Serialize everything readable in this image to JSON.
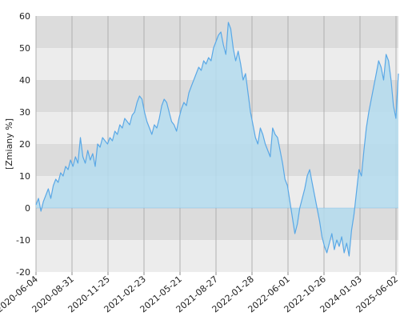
{
  "chart_data": {
    "type": "area",
    "title": "",
    "xlabel": "",
    "ylabel": "[Zmiany %]",
    "ylim": [
      -20,
      60
    ],
    "y_ticks": [
      -20,
      -10,
      0,
      10,
      20,
      30,
      40,
      50,
      60
    ],
    "grid": true,
    "x_tick_labels": [
      "2020-06-04",
      "2020-08-31",
      "2020-11-25",
      "2021-02-23",
      "2021-05-21",
      "2021-08-27",
      "2022-01-28",
      "2022-06-01",
      "2022-10-26",
      "2024-01-03",
      "2025-06-02"
    ],
    "colors": {
      "line": "#5aa8e6",
      "fill": "#b4dcee",
      "band_dark": "#dcdcdc",
      "band_light": "#ececec",
      "vgrid": "#b0b0b0"
    },
    "series": [
      {
        "values": [
          1,
          3,
          -1,
          2,
          4,
          6,
          3,
          7,
          9,
          8,
          11,
          10,
          13,
          12,
          15,
          13,
          16,
          14,
          22,
          16,
          14,
          18,
          15,
          17,
          13,
          20,
          19,
          22,
          21,
          20,
          22,
          21,
          24,
          23,
          26,
          25,
          28,
          27,
          26,
          29,
          30,
          33,
          35,
          34,
          30,
          27,
          25,
          23,
          26,
          25,
          28,
          32,
          34,
          33,
          30,
          27,
          26,
          24,
          28,
          31,
          33,
          32,
          36,
          38,
          40,
          42,
          44,
          43,
          46,
          45,
          47,
          46,
          50,
          52,
          54,
          55,
          51,
          48,
          58,
          56,
          50,
          46,
          49,
          45,
          40,
          42,
          36,
          30,
          26,
          22,
          20,
          25,
          23,
          20,
          18,
          16,
          25,
          23,
          22,
          18,
          14,
          9,
          7,
          2,
          -3,
          -8,
          -5,
          0,
          3,
          6,
          10,
          12,
          8,
          4,
          0,
          -4,
          -9,
          -12,
          -14,
          -11,
          -8,
          -13,
          -10,
          -12,
          -9,
          -14,
          -11,
          -15,
          -7,
          -2,
          5,
          12,
          10,
          18,
          25,
          30,
          34,
          38,
          42,
          46,
          44,
          40,
          48,
          46,
          40,
          32,
          28,
          42
        ]
      }
    ]
  }
}
